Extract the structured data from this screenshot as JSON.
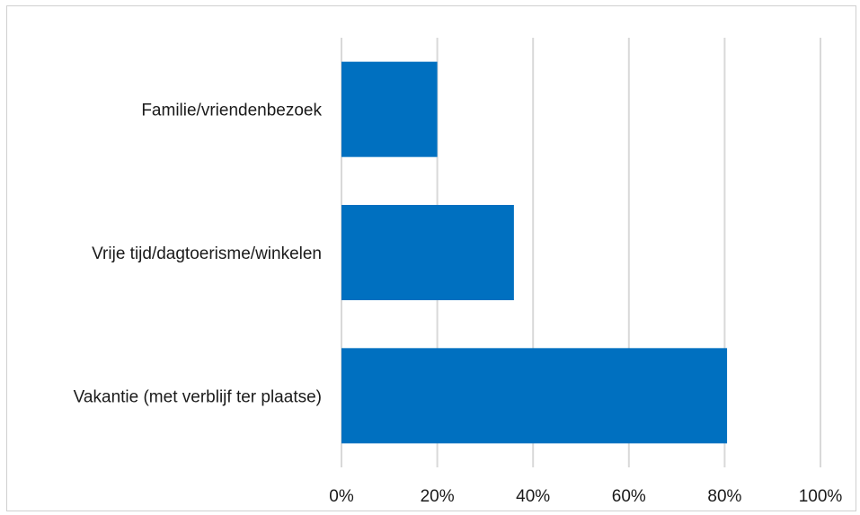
{
  "chart_data": {
    "type": "bar",
    "orientation": "horizontal",
    "categories": [
      "Familie/vriendenbezoek",
      "Vrije tijd/dagtoerisme/winkelen",
      "Vakantie (met verblijf ter plaatse)"
    ],
    "values": [
      0.2,
      0.36,
      0.805
    ],
    "xlim": [
      0,
      1
    ],
    "xticks": [
      "0%",
      "20%",
      "40%",
      "60%",
      "80%",
      "100%"
    ],
    "grid": true,
    "legend": "none",
    "bar_color": "#0070C0",
    "grid_color": "#d9d9d9"
  }
}
